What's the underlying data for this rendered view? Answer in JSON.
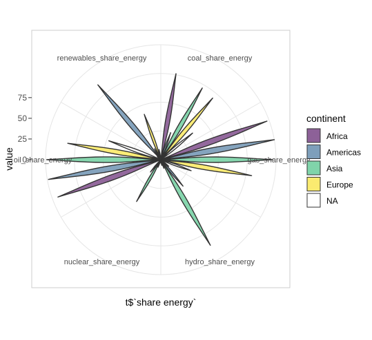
{
  "chart_data": {
    "type": "violin-polar",
    "xlabel": "t$`share energy`",
    "ylabel": "value",
    "categories": [
      "coal_share_energy",
      "gas_share_energy",
      "hydro_share_energy",
      "nuclear_share_energy",
      "oil_share_energy",
      "renewables_share_energy"
    ],
    "yticks": [
      0,
      25,
      50,
      75
    ],
    "ylim": [
      0,
      100
    ],
    "grid": true,
    "legend": {
      "title": "continent",
      "position": "right",
      "entries": [
        {
          "name": "Africa",
          "color": "#8d6198"
        },
        {
          "name": "Americas",
          "color": "#7e9fbb"
        },
        {
          "name": "Asia",
          "color": "#80d4aa"
        },
        {
          "name": "Europe",
          "color": "#fbeb70"
        },
        {
          "name": "NA",
          "color": "#ffffff"
        }
      ]
    },
    "violins": [
      {
        "category": "coal_share_energy",
        "continent": "Africa",
        "max": 76
      },
      {
        "category": "coal_share_energy",
        "continent": "Americas",
        "max": 25
      },
      {
        "category": "coal_share_energy",
        "continent": "Asia",
        "max": 72
      },
      {
        "category": "coal_share_energy",
        "continent": "Europe",
        "max": 70
      },
      {
        "category": "coal_share_energy",
        "continent": "NA",
        "max": 36
      },
      {
        "category": "gas_share_energy",
        "continent": "Africa",
        "max": 98
      },
      {
        "category": "gas_share_energy",
        "continent": "Americas",
        "max": 100
      },
      {
        "category": "gas_share_energy",
        "continent": "Asia",
        "max": 97
      },
      {
        "category": "gas_share_energy",
        "continent": "Europe",
        "max": 80
      },
      {
        "category": "gas_share_energy",
        "continent": "NA",
        "max": 28
      },
      {
        "category": "hydro_share_energy",
        "continent": "Africa",
        "max": 9
      },
      {
        "category": "hydro_share_energy",
        "continent": "Americas",
        "max": 30
      },
      {
        "category": "hydro_share_energy",
        "continent": "Asia",
        "max": 86
      },
      {
        "category": "hydro_share_energy",
        "continent": "Europe",
        "max": 8
      },
      {
        "category": "hydro_share_energy",
        "continent": "NA",
        "max": 5
      },
      {
        "category": "nuclear_share_energy",
        "continent": "Africa",
        "max": 3
      },
      {
        "category": "nuclear_share_energy",
        "continent": "Americas",
        "max": 7
      },
      {
        "category": "nuclear_share_energy",
        "continent": "Asia",
        "max": 42
      },
      {
        "category": "nuclear_share_energy",
        "continent": "Europe",
        "max": 14
      },
      {
        "category": "nuclear_share_energy",
        "continent": "NA",
        "max": 0
      },
      {
        "category": "oil_share_energy",
        "continent": "Africa",
        "max": 95
      },
      {
        "category": "oil_share_energy",
        "continent": "Americas",
        "max": 99
      },
      {
        "category": "oil_share_energy",
        "continent": "Asia",
        "max": 99
      },
      {
        "category": "oil_share_energy",
        "continent": "Europe",
        "max": 82
      },
      {
        "category": "oil_share_energy",
        "continent": "NA",
        "max": 48
      },
      {
        "category": "renewables_share_energy",
        "continent": "Africa",
        "max": 4
      },
      {
        "category": "renewables_share_energy",
        "continent": "Americas",
        "max": 85
      },
      {
        "category": "renewables_share_energy",
        "continent": "Asia",
        "max": 11
      },
      {
        "category": "renewables_share_energy",
        "continent": "Europe",
        "max": 42
      },
      {
        "category": "renewables_share_energy",
        "continent": "NA",
        "max": 9
      }
    ]
  }
}
